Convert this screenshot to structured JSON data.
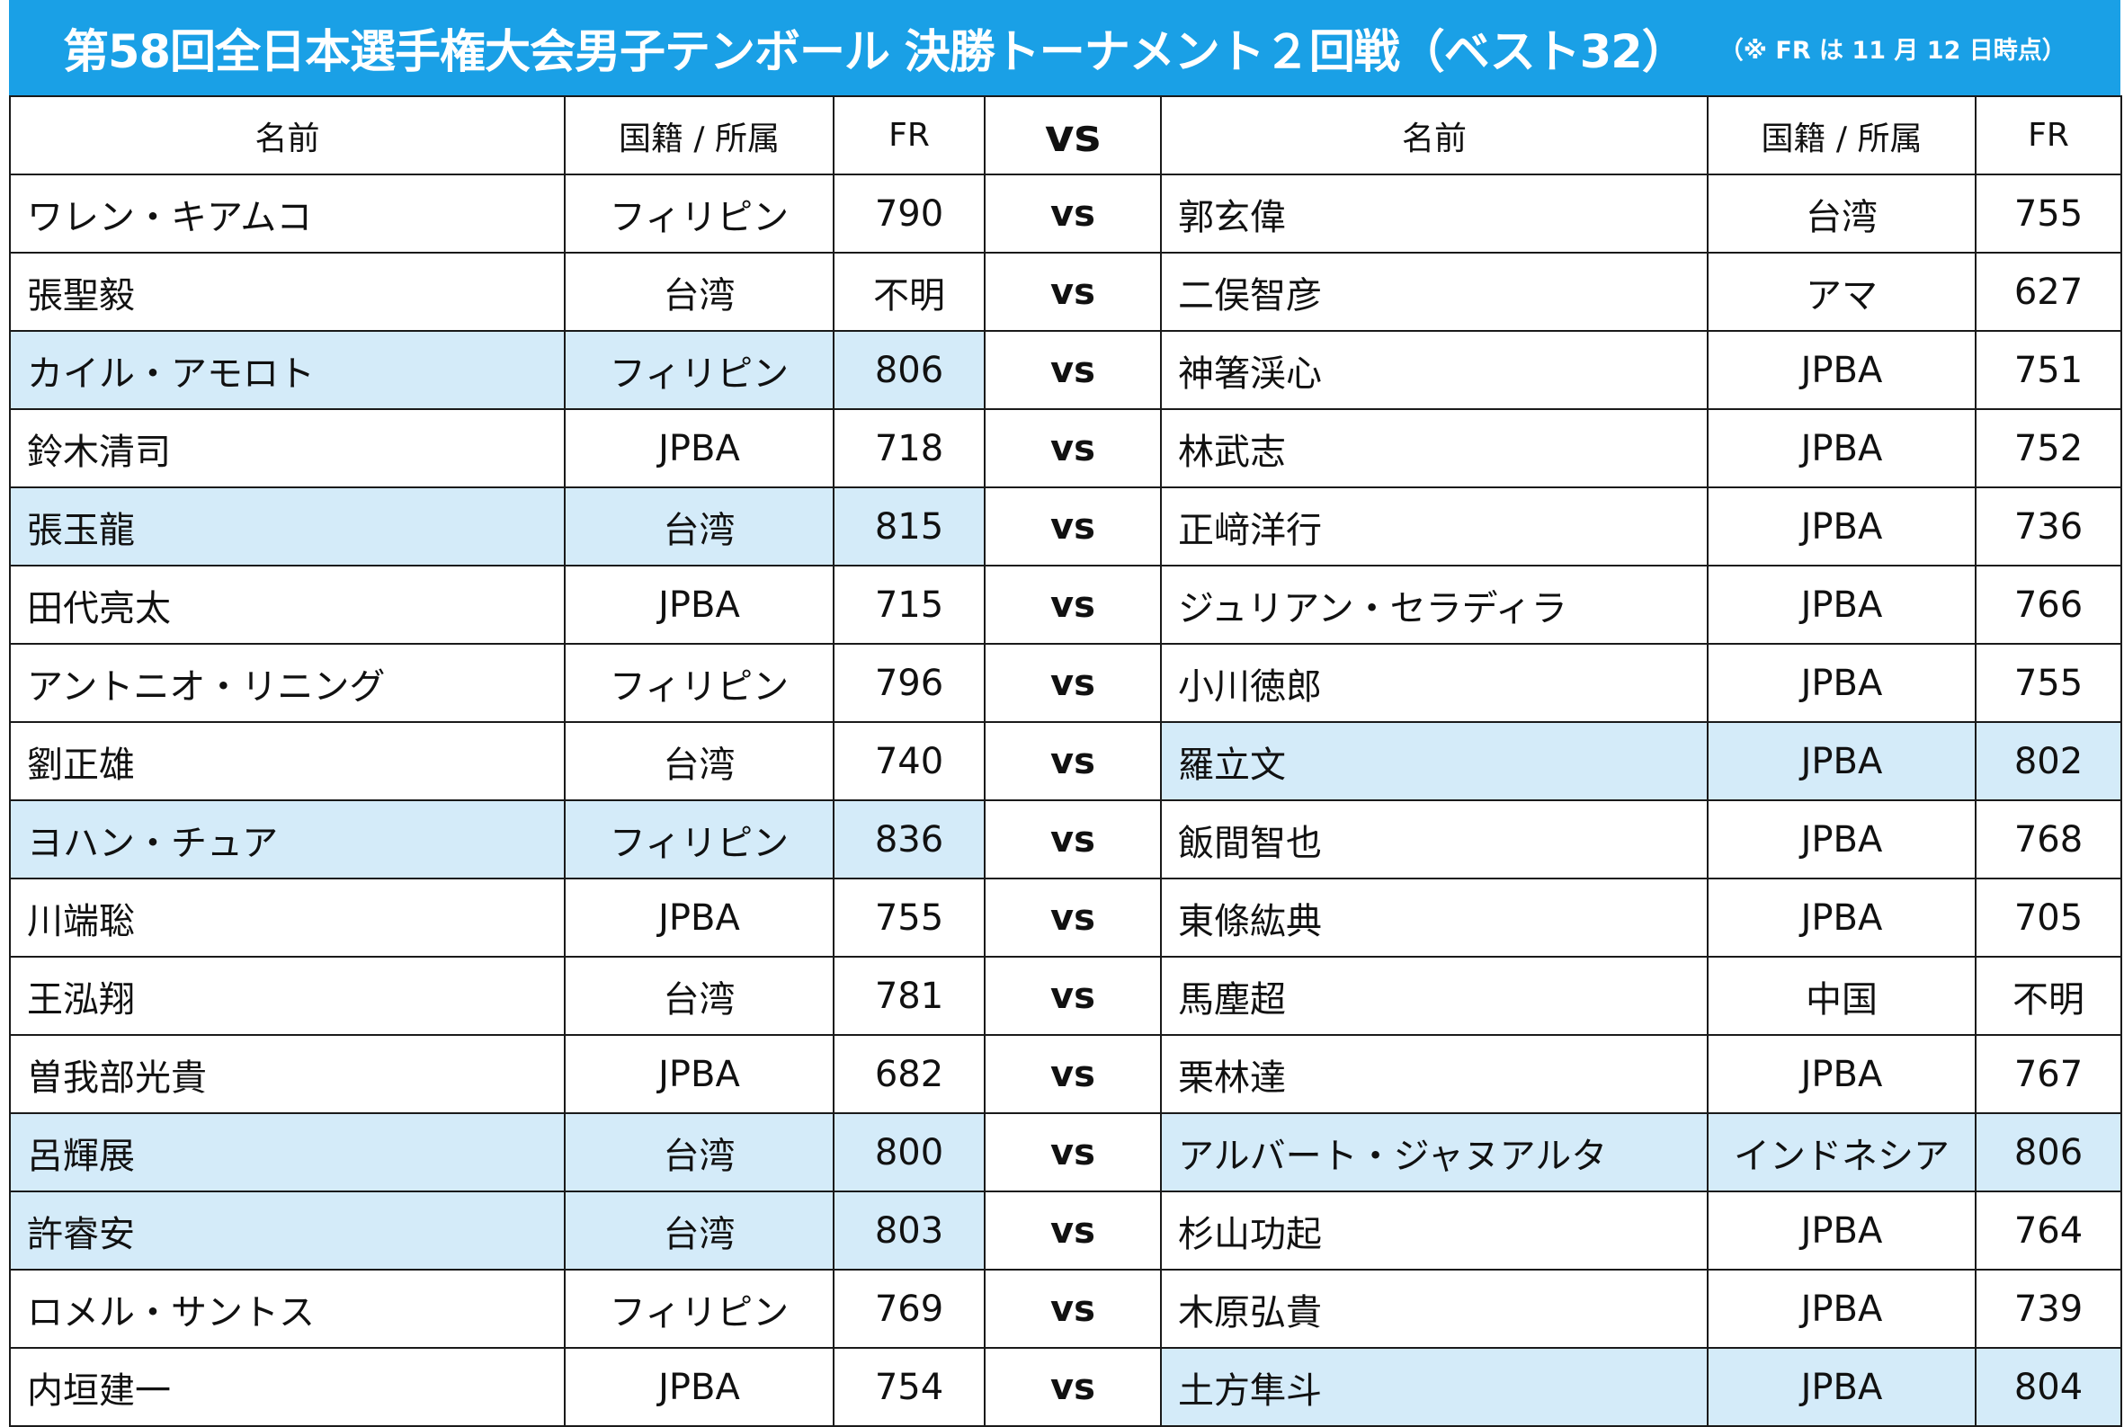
{
  "title": {
    "main": "第58回全日本選手権大会男子テンボール 決勝トーナメント２回戦（ベスト32）",
    "note": "（※ FR は 11 月 12 日時点）"
  },
  "colors": {
    "header_bg": "#1aa0e6",
    "highlight_bg": "#d4ebf9",
    "border": "#1a1a1a"
  },
  "header": {
    "name_left": "名前",
    "aff_left": "国籍 / 所属",
    "fr_left": "FR",
    "vs": "vs",
    "name_right": "名前",
    "aff_right": "国籍 / 所属",
    "fr_right": "FR"
  },
  "matches": [
    {
      "left": {
        "name": "ワレン・キアムコ",
        "aff": "フィリピン",
        "fr": "790",
        "winner": false
      },
      "vs": "vs",
      "right": {
        "name": "郭玄偉",
        "aff": "台湾",
        "fr": "755",
        "winner": false
      }
    },
    {
      "left": {
        "name": "張聖毅",
        "aff": "台湾",
        "fr": "不明",
        "winner": false
      },
      "vs": "vs",
      "right": {
        "name": "二俣智彦",
        "aff": "アマ",
        "fr": "627",
        "winner": false
      }
    },
    {
      "left": {
        "name": "カイル・アモロト",
        "aff": "フィリピン",
        "fr": "806",
        "winner": true
      },
      "vs": "vs",
      "right": {
        "name": "神箸渓心",
        "aff": "JPBA",
        "fr": "751",
        "winner": false
      }
    },
    {
      "left": {
        "name": "鈴木清司",
        "aff": "JPBA",
        "fr": "718",
        "winner": false
      },
      "vs": "vs",
      "right": {
        "name": "林武志",
        "aff": "JPBA",
        "fr": "752",
        "winner": false
      }
    },
    {
      "left": {
        "name": "張玉龍",
        "aff": "台湾",
        "fr": "815",
        "winner": true
      },
      "vs": "vs",
      "right": {
        "name": "正﨑洋行",
        "aff": "JPBA",
        "fr": "736",
        "winner": false
      }
    },
    {
      "left": {
        "name": "田代亮太",
        "aff": "JPBA",
        "fr": "715",
        "winner": false
      },
      "vs": "vs",
      "right": {
        "name": "ジュリアン・セラディラ",
        "aff": "JPBA",
        "fr": "766",
        "winner": false
      }
    },
    {
      "left": {
        "name": "アントニオ・リニング",
        "aff": "フィリピン",
        "fr": "796",
        "winner": false
      },
      "vs": "vs",
      "right": {
        "name": "小川徳郎",
        "aff": "JPBA",
        "fr": "755",
        "winner": false
      }
    },
    {
      "left": {
        "name": "劉正雄",
        "aff": "台湾",
        "fr": "740",
        "winner": false
      },
      "vs": "vs",
      "right": {
        "name": "羅立文",
        "aff": "JPBA",
        "fr": "802",
        "winner": true
      }
    },
    {
      "left": {
        "name": "ヨハン・チュア",
        "aff": "フィリピン",
        "fr": "836",
        "winner": true
      },
      "vs": "vs",
      "right": {
        "name": "飯間智也",
        "aff": "JPBA",
        "fr": "768",
        "winner": false
      }
    },
    {
      "left": {
        "name": "川端聡",
        "aff": "JPBA",
        "fr": "755",
        "winner": false
      },
      "vs": "vs",
      "right": {
        "name": "東條紘典",
        "aff": "JPBA",
        "fr": "705",
        "winner": false
      }
    },
    {
      "left": {
        "name": "王泓翔",
        "aff": "台湾",
        "fr": "781",
        "winner": false
      },
      "vs": "vs",
      "right": {
        "name": "馬塵超",
        "aff": "中国",
        "fr": "不明",
        "winner": false
      }
    },
    {
      "left": {
        "name": "曽我部光貴",
        "aff": "JPBA",
        "fr": "682",
        "winner": false
      },
      "vs": "vs",
      "right": {
        "name": "栗林達",
        "aff": "JPBA",
        "fr": "767",
        "winner": false
      }
    },
    {
      "left": {
        "name": "呂輝展",
        "aff": "台湾",
        "fr": "800",
        "winner": true
      },
      "vs": "vs",
      "right": {
        "name": "アルバート・ジャヌアルタ",
        "aff": "インドネシア",
        "fr": "806",
        "winner": true
      }
    },
    {
      "left": {
        "name": "許睿安",
        "aff": "台湾",
        "fr": "803",
        "winner": true
      },
      "vs": "vs",
      "right": {
        "name": "杉山功起",
        "aff": "JPBA",
        "fr": "764",
        "winner": false
      }
    },
    {
      "left": {
        "name": "ロメル・サントス",
        "aff": "フィリピン",
        "fr": "769",
        "winner": false
      },
      "vs": "vs",
      "right": {
        "name": "木原弘貴",
        "aff": "JPBA",
        "fr": "739",
        "winner": false
      }
    },
    {
      "left": {
        "name": "内垣建一",
        "aff": "JPBA",
        "fr": "754",
        "winner": false
      },
      "vs": "vs",
      "right": {
        "name": "土方隼斗",
        "aff": "JPBA",
        "fr": "804",
        "winner": true
      }
    }
  ]
}
